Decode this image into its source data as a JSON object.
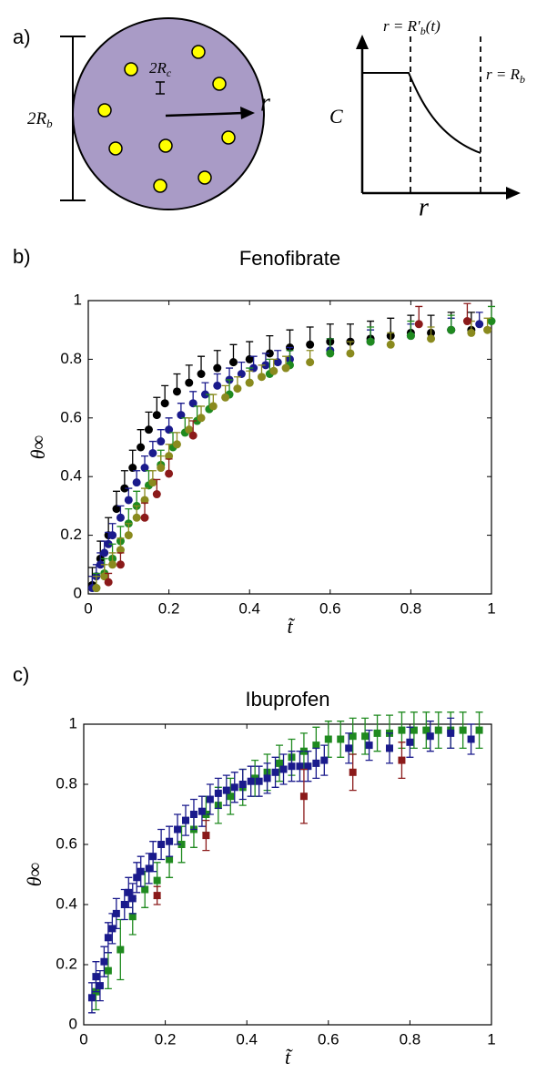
{
  "diagram": {
    "panel_label": "a)",
    "body_size": {
      "main": "2R",
      "sub": "b"
    },
    "cell_size": {
      "main": "2R",
      "sub": "c"
    },
    "radius": "r",
    "y_label": "C",
    "x_label": "r",
    "front": {
      "main": "r = R′",
      "sub": "b",
      "tail": "(t)"
    },
    "edge": {
      "main": "r = R",
      "sub": "b"
    }
  },
  "chart_data": [
    {
      "type": "scatter",
      "panel_label": "b)",
      "title": "Fenofibrate",
      "xlabel": "t̃",
      "ylabel": "θ∞",
      "marker": "circle",
      "errorbar": "upper",
      "xlim": [
        0,
        1
      ],
      "ylim": [
        0,
        1
      ],
      "xticks": [
        0,
        0.2,
        0.4,
        0.6,
        0.8,
        1
      ],
      "yticks": [
        0,
        0.2,
        0.4,
        0.6,
        0.8,
        1
      ],
      "series": [
        {
          "color": "#000000",
          "x": [
            0.01,
            0.03,
            0.05,
            0.07,
            0.09,
            0.11,
            0.13,
            0.15,
            0.17,
            0.19,
            0.22,
            0.25,
            0.28,
            0.32,
            0.36,
            0.4,
            0.45,
            0.5,
            0.55,
            0.6,
            0.65,
            0.7,
            0.75,
            0.8,
            0.85,
            0.9,
            0.95
          ],
          "values": [
            0.03,
            0.12,
            0.2,
            0.29,
            0.36,
            0.43,
            0.5,
            0.56,
            0.61,
            0.65,
            0.69,
            0.72,
            0.75,
            0.77,
            0.79,
            0.8,
            0.82,
            0.84,
            0.85,
            0.86,
            0.86,
            0.87,
            0.88,
            0.89,
            0.89,
            0.9,
            0.9
          ],
          "errors": [
            0.06,
            0.06,
            0.06,
            0.06,
            0.06,
            0.06,
            0.06,
            0.06,
            0.06,
            0.06,
            0.06,
            0.06,
            0.06,
            0.06,
            0.06,
            0.06,
            0.06,
            0.06,
            0.06,
            0.06,
            0.06,
            0.06,
            0.06,
            0.06,
            0.06,
            0.06,
            0.06
          ]
        },
        {
          "color": "#1a1a8c",
          "x": [
            0.01,
            0.02,
            0.03,
            0.04,
            0.05,
            0.06,
            0.08,
            0.1,
            0.12,
            0.14,
            0.16,
            0.18,
            0.2,
            0.23,
            0.26,
            0.29,
            0.32,
            0.35,
            0.38,
            0.41,
            0.44,
            0.47,
            0.5,
            0.6,
            0.7,
            0.8,
            0.9,
            0.97
          ],
          "values": [
            0.02,
            0.06,
            0.1,
            0.14,
            0.17,
            0.2,
            0.26,
            0.32,
            0.38,
            0.43,
            0.48,
            0.52,
            0.56,
            0.61,
            0.65,
            0.68,
            0.71,
            0.73,
            0.75,
            0.77,
            0.78,
            0.79,
            0.8,
            0.83,
            0.86,
            0.88,
            0.9,
            0.92
          ],
          "errors": [
            0.04,
            0.04,
            0.04,
            0.04,
            0.04,
            0.04,
            0.04,
            0.04,
            0.04,
            0.04,
            0.04,
            0.04,
            0.04,
            0.04,
            0.04,
            0.04,
            0.04,
            0.04,
            0.04,
            0.04,
            0.04,
            0.04,
            0.04,
            0.04,
            0.04,
            0.04,
            0.04,
            0.04
          ]
        },
        {
          "color": "#1f8a1f",
          "x": [
            0.02,
            0.04,
            0.06,
            0.08,
            0.1,
            0.12,
            0.15,
            0.18,
            0.21,
            0.24,
            0.27,
            0.3,
            0.35,
            0.4,
            0.45,
            0.5,
            0.6,
            0.7,
            0.8,
            0.9,
            1
          ],
          "values": [
            0.02,
            0.07,
            0.12,
            0.18,
            0.24,
            0.3,
            0.37,
            0.44,
            0.5,
            0.55,
            0.59,
            0.63,
            0.68,
            0.72,
            0.75,
            0.78,
            0.82,
            0.86,
            0.88,
            0.9,
            0.93
          ],
          "errors": [
            0.05,
            0.05,
            0.05,
            0.05,
            0.05,
            0.05,
            0.05,
            0.05,
            0.05,
            0.05,
            0.05,
            0.05,
            0.05,
            0.05,
            0.05,
            0.05,
            0.05,
            0.05,
            0.05,
            0.05,
            0.05
          ]
        },
        {
          "color": "#8a8a1e",
          "x": [
            0.02,
            0.04,
            0.06,
            0.08,
            0.1,
            0.12,
            0.14,
            0.16,
            0.18,
            0.2,
            0.22,
            0.25,
            0.28,
            0.31,
            0.34,
            0.37,
            0.4,
            0.43,
            0.46,
            0.49,
            0.55,
            0.65,
            0.75,
            0.85,
            0.95,
            0.99
          ],
          "values": [
            0.02,
            0.06,
            0.1,
            0.15,
            0.2,
            0.26,
            0.32,
            0.38,
            0.43,
            0.47,
            0.51,
            0.56,
            0.6,
            0.64,
            0.67,
            0.7,
            0.72,
            0.74,
            0.76,
            0.77,
            0.79,
            0.82,
            0.85,
            0.87,
            0.89,
            0.9
          ],
          "errors": [
            0.04,
            0.04,
            0.04,
            0.04,
            0.04,
            0.04,
            0.04,
            0.04,
            0.04,
            0.04,
            0.04,
            0.04,
            0.04,
            0.04,
            0.04,
            0.04,
            0.04,
            0.04,
            0.04,
            0.04,
            0.04,
            0.04,
            0.04,
            0.04,
            0.04,
            0.04
          ]
        },
        {
          "color": "#8b1a1a",
          "x": [
            0.05,
            0.08,
            0.14,
            0.17,
            0.2,
            0.26,
            0.82,
            0.94
          ],
          "values": [
            0.04,
            0.1,
            0.26,
            0.34,
            0.41,
            0.54,
            0.92,
            0.93
          ],
          "errors": [
            0.03,
            0.04,
            0.05,
            0.05,
            0.05,
            0.05,
            0.06,
            0.06
          ]
        }
      ]
    },
    {
      "type": "scatter",
      "panel_label": "c)",
      "title": "Ibuprofen",
      "xlabel": "t̃",
      "ylabel": "θ∞",
      "marker": "square",
      "errorbar": "both",
      "xlim": [
        0,
        1
      ],
      "ylim": [
        0,
        1
      ],
      "xticks": [
        0,
        0.2,
        0.4,
        0.6,
        0.8,
        1
      ],
      "yticks": [
        0,
        0.2,
        0.4,
        0.6,
        0.8,
        1
      ],
      "series": [
        {
          "color": "#1f8a1f",
          "x": [
            0.03,
            0.06,
            0.09,
            0.12,
            0.15,
            0.18,
            0.21,
            0.24,
            0.27,
            0.3,
            0.33,
            0.36,
            0.39,
            0.42,
            0.45,
            0.48,
            0.51,
            0.54,
            0.57,
            0.6,
            0.63,
            0.66,
            0.69,
            0.72,
            0.75,
            0.78,
            0.81,
            0.84,
            0.87,
            0.9,
            0.93,
            0.97
          ],
          "values": [
            0.11,
            0.18,
            0.25,
            0.36,
            0.45,
            0.48,
            0.55,
            0.6,
            0.65,
            0.7,
            0.73,
            0.76,
            0.79,
            0.82,
            0.84,
            0.87,
            0.89,
            0.91,
            0.93,
            0.95,
            0.95,
            0.96,
            0.96,
            0.97,
            0.97,
            0.98,
            0.98,
            0.98,
            0.98,
            0.98,
            0.98,
            0.98
          ],
          "errors": [
            0.06,
            0.06,
            0.1,
            0.06,
            0.06,
            0.06,
            0.06,
            0.06,
            0.06,
            0.06,
            0.06,
            0.06,
            0.06,
            0.06,
            0.06,
            0.06,
            0.06,
            0.06,
            0.06,
            0.06,
            0.06,
            0.06,
            0.06,
            0.06,
            0.06,
            0.06,
            0.06,
            0.06,
            0.06,
            0.06,
            0.06,
            0.06
          ]
        },
        {
          "color": "#1a1a8c",
          "x": [
            0.02,
            0.03,
            0.04,
            0.05,
            0.06,
            0.07,
            0.08,
            0.1,
            0.11,
            0.12,
            0.13,
            0.14,
            0.16,
            0.17,
            0.19,
            0.21,
            0.23,
            0.25,
            0.27,
            0.29,
            0.31,
            0.33,
            0.35,
            0.37,
            0.39,
            0.41,
            0.43,
            0.45,
            0.47,
            0.49,
            0.51,
            0.53,
            0.55,
            0.57,
            0.59,
            0.65,
            0.7,
            0.75,
            0.8,
            0.85,
            0.9,
            0.95
          ],
          "values": [
            0.09,
            0.16,
            0.13,
            0.21,
            0.29,
            0.32,
            0.37,
            0.4,
            0.44,
            0.42,
            0.49,
            0.51,
            0.52,
            0.56,
            0.6,
            0.61,
            0.65,
            0.68,
            0.7,
            0.71,
            0.75,
            0.77,
            0.78,
            0.79,
            0.8,
            0.81,
            0.81,
            0.82,
            0.84,
            0.85,
            0.86,
            0.86,
            0.86,
            0.87,
            0.88,
            0.92,
            0.93,
            0.92,
            0.94,
            0.96,
            0.97,
            0.95
          ],
          "errors": [
            0.05,
            0.05,
            0.05,
            0.05,
            0.05,
            0.05,
            0.05,
            0.05,
            0.05,
            0.05,
            0.05,
            0.05,
            0.05,
            0.05,
            0.05,
            0.05,
            0.05,
            0.05,
            0.05,
            0.05,
            0.05,
            0.05,
            0.05,
            0.05,
            0.05,
            0.05,
            0.05,
            0.05,
            0.05,
            0.05,
            0.05,
            0.05,
            0.05,
            0.05,
            0.05,
            0.05,
            0.05,
            0.05,
            0.05,
            0.05,
            0.05,
            0.05
          ]
        },
        {
          "color": "#8b1a1a",
          "x": [
            0.18,
            0.3,
            0.54,
            0.66,
            0.78
          ],
          "values": [
            0.43,
            0.63,
            0.76,
            0.84,
            0.88
          ],
          "errors": [
            0.03,
            0.05,
            0.09,
            0.06,
            0.06
          ]
        }
      ]
    }
  ]
}
